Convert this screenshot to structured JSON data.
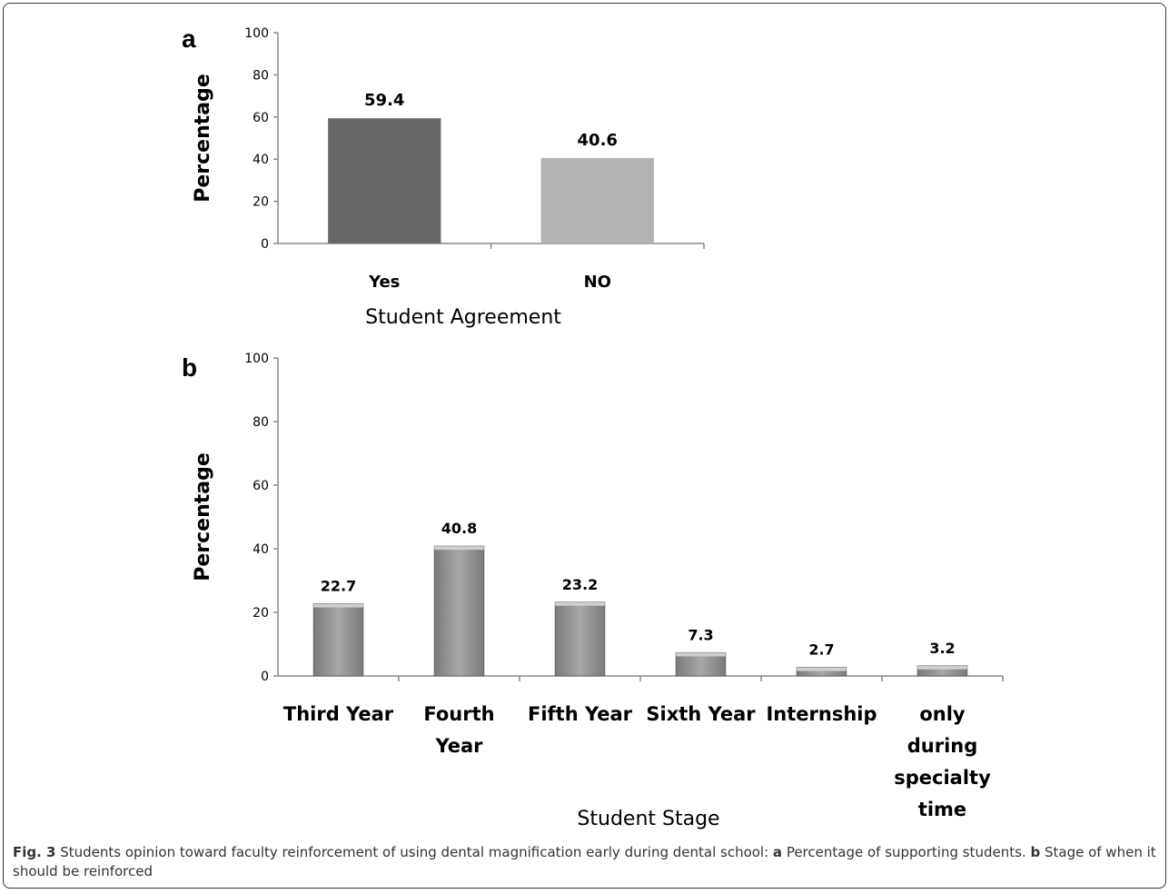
{
  "chart_data": [
    {
      "panel": "a",
      "type": "bar",
      "categories": [
        "Yes",
        "NO"
      ],
      "values": [
        59.4,
        40.6
      ],
      "data_labels": [
        "59.4",
        "40.6"
      ],
      "colors": [
        "#666666",
        "#b3b3b3"
      ],
      "xlabel": "Student Agreement",
      "ylabel": "Percentage",
      "ylim": [
        0,
        100
      ],
      "yticks": [
        "0",
        "20",
        "40",
        "60",
        "80",
        "100"
      ],
      "grid": false
    },
    {
      "panel": "b",
      "type": "bar",
      "categories": [
        "Third Year",
        "Fourth Year",
        "Fifth Year",
        "Sixth Year",
        "Internship",
        "only during specialty time"
      ],
      "category_lines": [
        [
          "Third Year"
        ],
        [
          "Fourth",
          "Year"
        ],
        [
          "Fifth Year"
        ],
        [
          "Sixth Year"
        ],
        [
          "Internship"
        ],
        [
          "only",
          "during",
          "specialty",
          "time"
        ]
      ],
      "values": [
        22.7,
        40.8,
        23.2,
        7.3,
        2.7,
        3.2
      ],
      "data_labels": [
        "22.7",
        "40.8",
        "23.2",
        "7.3",
        "2.7",
        "3.2"
      ],
      "color": "#999999",
      "xlabel": "Student Stage",
      "ylabel": "Percentage",
      "ylim": [
        0,
        100
      ],
      "yticks": [
        "0",
        "20",
        "40",
        "60",
        "80",
        "100"
      ],
      "grid": false
    }
  ],
  "caption": {
    "fig_label": "Fig. 3",
    "text_1": " Students opinion toward faculty reinforcement of using dental magnification early during dental school: ",
    "bold_a": "a",
    "text_2": " Percentage of supporting students. ",
    "bold_b": "b",
    "text_3": " Stage of when it should be reinforced"
  }
}
